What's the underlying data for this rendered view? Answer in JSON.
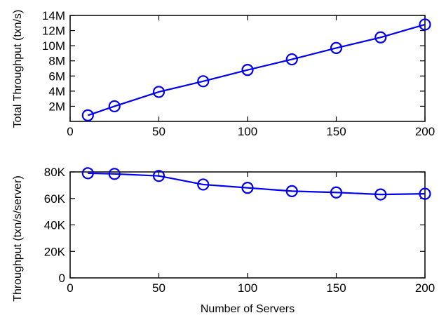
{
  "chart_data": [
    {
      "type": "line",
      "title": "",
      "xlabel": "",
      "ylabel": "Total Throughput (txn/s)",
      "xlim": [
        0,
        200
      ],
      "ylim": [
        0,
        14000000
      ],
      "xticks": [
        0,
        50,
        100,
        150,
        200
      ],
      "xtick_labels": [
        "0",
        "50",
        "100",
        "150",
        "200"
      ],
      "yticks": [
        2000000,
        4000000,
        6000000,
        8000000,
        10000000,
        12000000,
        14000000
      ],
      "ytick_labels": [
        "2M",
        "4M",
        "6M",
        "8M",
        "10M",
        "12M",
        "14M"
      ],
      "grid": false,
      "series": [
        {
          "color": "#0000ee",
          "marker": "circle",
          "x": [
            10,
            25,
            50,
            75,
            100,
            125,
            150,
            175,
            200
          ],
          "y": [
            800000,
            2000000,
            3900000,
            5300000,
            6800000,
            8200000,
            9700000,
            11100000,
            12800000
          ]
        }
      ]
    },
    {
      "type": "line",
      "title": "",
      "xlabel": "Number of Servers",
      "ylabel": "Throughput (txn/s/server)",
      "xlim": [
        0,
        200
      ],
      "ylim": [
        0,
        80000
      ],
      "xticks": [
        0,
        50,
        100,
        150,
        200
      ],
      "xtick_labels": [
        "0",
        "50",
        "100",
        "150",
        "200"
      ],
      "yticks": [
        0,
        20000,
        40000,
        60000,
        80000
      ],
      "ytick_labels": [
        "0",
        "20K",
        "40K",
        "60K",
        "80K"
      ],
      "grid": false,
      "series": [
        {
          "color": "#0000ee",
          "marker": "circle",
          "x": [
            10,
            25,
            50,
            75,
            100,
            125,
            150,
            175,
            200
          ],
          "y": [
            79000,
            78500,
            77000,
            70500,
            68000,
            65500,
            64500,
            63000,
            63500
          ]
        }
      ]
    }
  ]
}
